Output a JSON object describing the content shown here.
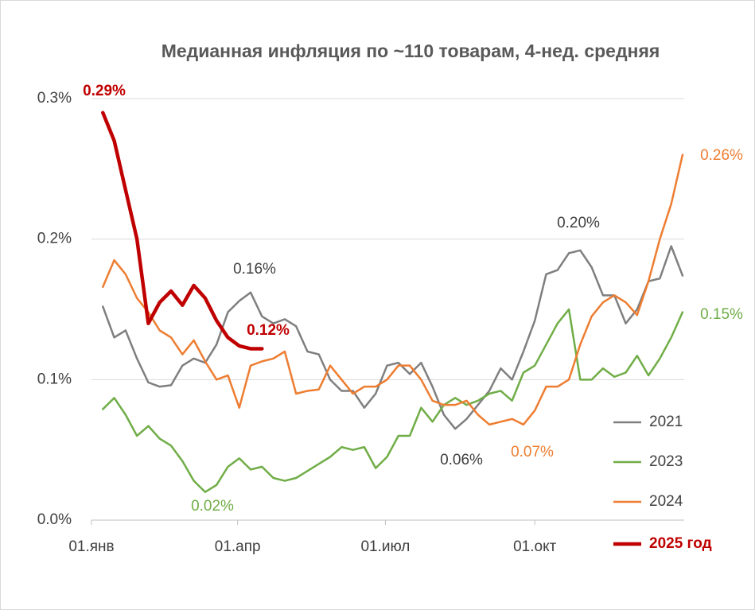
{
  "chart_data": {
    "type": "line",
    "title": "Медианная инфляция по ~110 товарам, 4-нед. средняя",
    "x": [
      7,
      14,
      21,
      28,
      35,
      42,
      49,
      56,
      63,
      70,
      77,
      84,
      91,
      98,
      105,
      112,
      119,
      126,
      133,
      140,
      147,
      154,
      161,
      168,
      175,
      182,
      189,
      196,
      203,
      210,
      217,
      224,
      231,
      238,
      245,
      252,
      259,
      266,
      273,
      280,
      287,
      294,
      301,
      308,
      315,
      322,
      329,
      336,
      343,
      350,
      357,
      364
    ],
    "xlim": [
      0,
      365
    ],
    "xticks": [
      {
        "value": 0,
        "label": "01.янв"
      },
      {
        "value": 90,
        "label": "01.апр"
      },
      {
        "value": 181,
        "label": "01.июл"
      },
      {
        "value": 273,
        "label": "01.окт"
      }
    ],
    "ylim": [
      0,
      0.3
    ],
    "yticks": [
      {
        "value": 0,
        "label": "0.0%"
      },
      {
        "value": 0.1,
        "label": "0.1%"
      },
      {
        "value": 0.2,
        "label": "0.2%"
      },
      {
        "value": 0.3,
        "label": "0.3%"
      }
    ],
    "grid": true,
    "legend": "lower right",
    "series": [
      {
        "name": "2021",
        "color": "#7f7f7f",
        "values": [
          0.152,
          0.13,
          0.135,
          0.115,
          0.098,
          0.095,
          0.096,
          0.11,
          0.115,
          0.112,
          0.125,
          0.148,
          0.156,
          0.162,
          0.145,
          0.14,
          0.143,
          0.138,
          0.12,
          0.118,
          0.1,
          0.092,
          0.092,
          0.08,
          0.09,
          0.11,
          0.112,
          0.104,
          0.112,
          0.095,
          0.075,
          0.065,
          0.072,
          0.082,
          0.092,
          0.108,
          0.1,
          0.12,
          0.142,
          0.175,
          0.178,
          0.19,
          0.192,
          0.18,
          0.16,
          0.16,
          0.14,
          0.15,
          0.17,
          0.172,
          0.195,
          0.174
        ]
      },
      {
        "name": "2023",
        "color": "#70ad47",
        "values": [
          0.079,
          0.087,
          0.075,
          0.06,
          0.067,
          0.058,
          0.053,
          0.042,
          0.028,
          0.02,
          0.025,
          0.038,
          0.044,
          0.036,
          0.038,
          0.03,
          0.028,
          0.03,
          0.035,
          0.04,
          0.045,
          0.052,
          0.05,
          0.052,
          0.037,
          0.045,
          0.06,
          0.06,
          0.08,
          0.07,
          0.082,
          0.087,
          0.082,
          0.085,
          0.09,
          0.092,
          0.085,
          0.105,
          0.11,
          0.125,
          0.14,
          0.15,
          0.1,
          0.1,
          0.108,
          0.102,
          0.105,
          0.117,
          0.103,
          0.115,
          0.13,
          0.148
        ]
      },
      {
        "name": "2024",
        "color": "#ed7d31",
        "values": [
          0.166,
          0.185,
          0.175,
          0.158,
          0.148,
          0.135,
          0.13,
          0.118,
          0.128,
          0.113,
          0.1,
          0.103,
          0.08,
          0.11,
          0.113,
          0.115,
          0.12,
          0.09,
          0.092,
          0.093,
          0.11,
          0.1,
          0.09,
          0.095,
          0.095,
          0.1,
          0.11,
          0.11,
          0.1,
          0.085,
          0.082,
          0.082,
          0.085,
          0.075,
          0.068,
          0.07,
          0.072,
          0.068,
          0.078,
          0.095,
          0.095,
          0.1,
          0.125,
          0.145,
          0.155,
          0.16,
          0.155,
          0.146,
          0.17,
          0.2,
          0.225,
          0.26
        ]
      },
      {
        "name": "2025 год",
        "color": "#c00000",
        "values": [
          0.29,
          0.27,
          0.235,
          0.2,
          0.14,
          0.155,
          0.163,
          0.153,
          0.167,
          0.158,
          0.142,
          0.13,
          0.124,
          0.122,
          0.122,
          null,
          null,
          null,
          null,
          null,
          null,
          null,
          null,
          null,
          null,
          null,
          null,
          null,
          null,
          null,
          null,
          null,
          null,
          null,
          null,
          null,
          null,
          null,
          null,
          null,
          null,
          null,
          null,
          null,
          null,
          null,
          null,
          null,
          null,
          null,
          null,
          null
        ]
      }
    ],
    "annotations": [
      {
        "text": "0.29%",
        "color": "#c00000",
        "bold": true
      },
      {
        "text": "0.16%",
        "color": "#404040",
        "bold": false
      },
      {
        "text": "0.12%",
        "color": "#c00000",
        "bold": true
      },
      {
        "text": "0.20%",
        "color": "#404040",
        "bold": false
      },
      {
        "text": "0.06%",
        "color": "#404040",
        "bold": false
      },
      {
        "text": "0.07%",
        "color": "#ed7d31",
        "bold": false
      },
      {
        "text": "0.02%",
        "color": "#70ad47",
        "bold": false
      },
      {
        "text": "0.26%",
        "color": "#ed7d31",
        "bold": false
      },
      {
        "text": "0.15%",
        "color": "#70ad47",
        "bold": false
      }
    ]
  }
}
